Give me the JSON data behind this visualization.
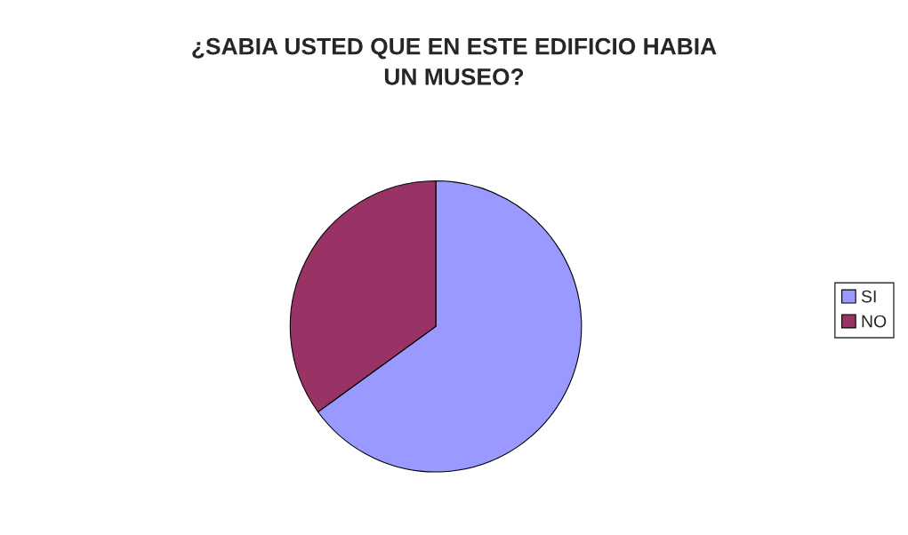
{
  "chart_data": {
    "type": "pie",
    "title": "¿SABIA USTED QUE EN ESTE EDIFICIO HABIA\nUN MUSEO?",
    "categories": [
      "SI",
      "NO"
    ],
    "values": [
      65,
      35
    ],
    "colors": [
      "#9999ff",
      "#993366"
    ],
    "legend": "right"
  }
}
